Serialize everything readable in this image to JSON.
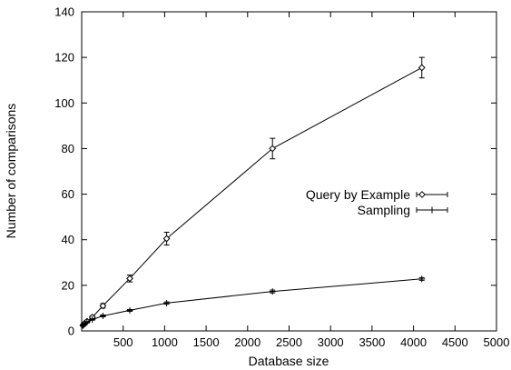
{
  "chart_data": {
    "type": "line",
    "title": "",
    "xlabel": "Database size",
    "ylabel": "Number of comparisons",
    "xlim": [
      0,
      5000
    ],
    "ylim": [
      0,
      140
    ],
    "xticks": [
      500,
      1000,
      1500,
      2000,
      2500,
      3000,
      3500,
      4000,
      4500,
      5000
    ],
    "yticks": [
      0,
      20,
      40,
      60,
      80,
      100,
      120,
      140
    ],
    "grid": false,
    "legend_position": "right",
    "error_bars": true,
    "series": [
      {
        "name": "Query by Example",
        "marker": "diamond",
        "color": "#000000",
        "points": [
          {
            "x": 16,
            "y": 2.5,
            "err": 0.5
          },
          {
            "x": 32,
            "y": 3.2,
            "err": 0.5
          },
          {
            "x": 64,
            "y": 4.2,
            "err": 0.5
          },
          {
            "x": 128,
            "y": 6.0,
            "err": 0.6
          },
          {
            "x": 256,
            "y": 11.0,
            "err": 1.0
          },
          {
            "x": 580,
            "y": 23.0,
            "err": 1.5
          },
          {
            "x": 1024,
            "y": 40.5,
            "err": 2.8
          },
          {
            "x": 2300,
            "y": 80.0,
            "err": 4.5
          },
          {
            "x": 4100,
            "y": 115.5,
            "err": 4.5
          }
        ]
      },
      {
        "name": "Sampling",
        "marker": "plus",
        "color": "#000000",
        "points": [
          {
            "x": 16,
            "y": 2.3,
            "err": 0.3
          },
          {
            "x": 32,
            "y": 3.0,
            "err": 0.3
          },
          {
            "x": 64,
            "y": 3.8,
            "err": 0.3
          },
          {
            "x": 128,
            "y": 5.0,
            "err": 0.3
          },
          {
            "x": 256,
            "y": 6.6,
            "err": 0.4
          },
          {
            "x": 580,
            "y": 9.0,
            "err": 0.4
          },
          {
            "x": 1024,
            "y": 12.2,
            "err": 0.5
          },
          {
            "x": 2300,
            "y": 17.3,
            "err": 0.6
          },
          {
            "x": 4100,
            "y": 22.8,
            "err": 0.6
          }
        ]
      }
    ]
  }
}
